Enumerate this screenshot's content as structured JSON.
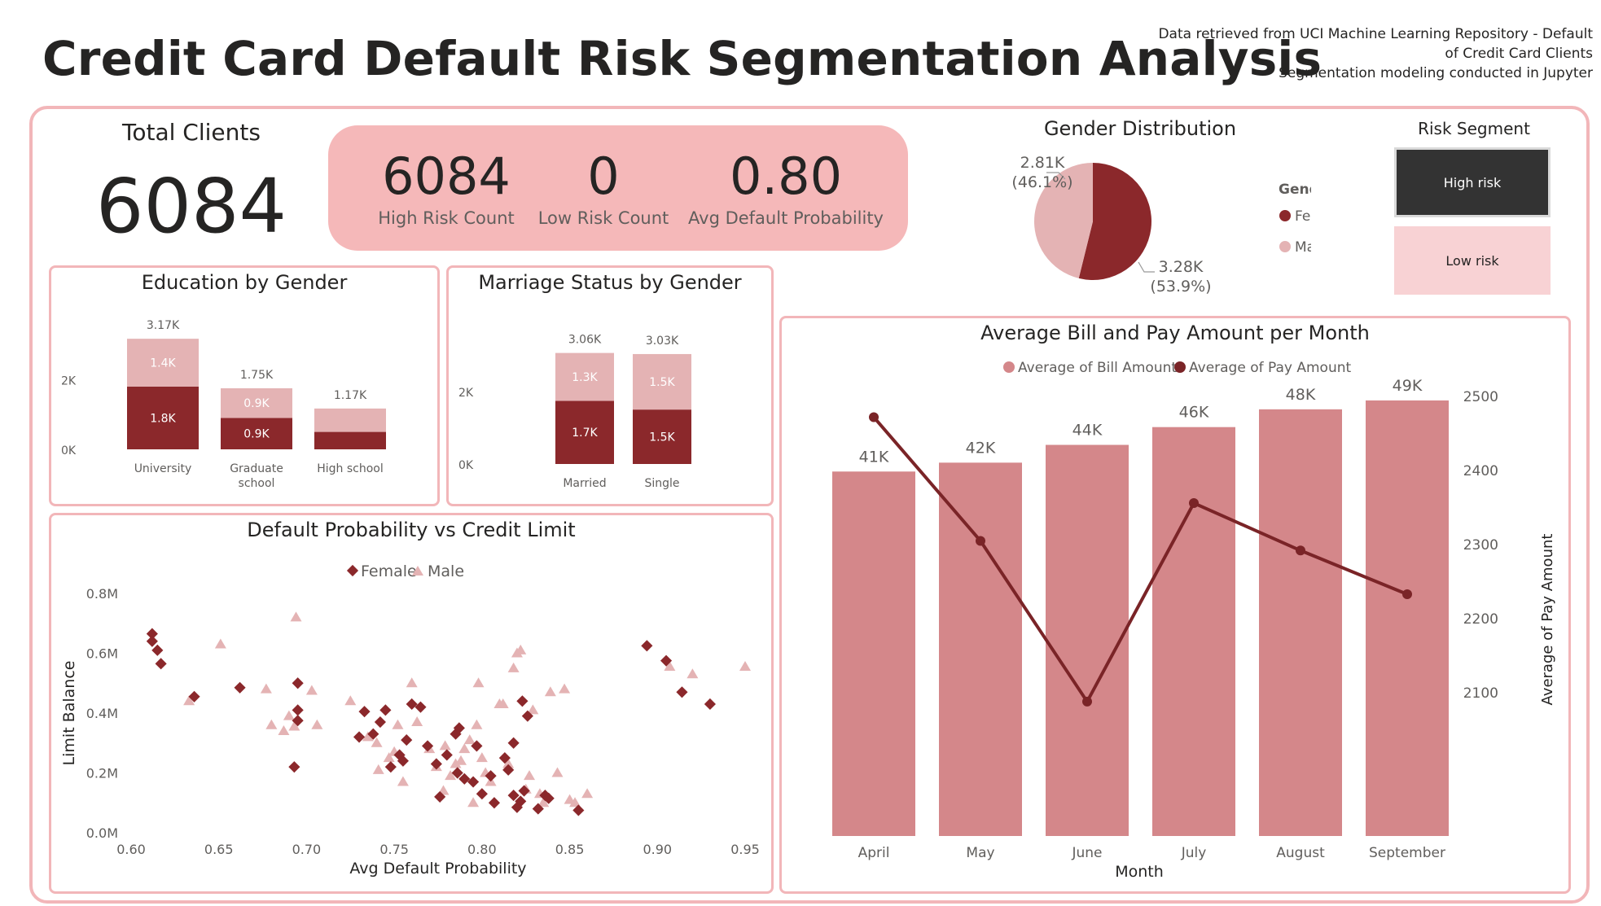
{
  "header": {
    "title": "Credit Card Default Risk Segmentation Analysis",
    "source_lines": [
      "Data retrieved from UCI Machine Learning Repository - Default",
      "of Credit Card Clients",
      "Segmentation modeling conducted in Jupyter"
    ]
  },
  "colors": {
    "female": "#8b282b",
    "male": "#e4b3b4",
    "bill": "#d4878a",
    "pay": "#7a2427",
    "border": "#f2b6b9",
    "pill": "#f5b8b9"
  },
  "kpis": {
    "total_label": "Total Clients",
    "total_value": "6084",
    "high_value": "6084",
    "high_label": "High Risk Count",
    "low_value": "0",
    "low_label": "Low Risk Count",
    "avg_value": "0.80",
    "avg_label": "Avg Default Probability"
  },
  "risk_segment": {
    "title": "Risk Segment",
    "options": [
      "High risk",
      "Low risk"
    ],
    "selected": "High risk"
  },
  "chart_data": [
    {
      "type": "pie",
      "title": "Gender Distribution",
      "legend_title": "Gender",
      "legend_position": "right",
      "slices": [
        {
          "name": "Female",
          "value": 3280,
          "label": "3.28K",
          "pct": "(53.9%)"
        },
        {
          "name": "Male",
          "value": 2810,
          "label": "2.81K",
          "pct": "(46.1%)"
        }
      ]
    },
    {
      "type": "bar",
      "stacked": true,
      "title": "Education by Gender",
      "categories": [
        "University",
        "Graduate school",
        "High school"
      ],
      "category_lines": [
        [
          "University"
        ],
        [
          "Graduate",
          "school"
        ],
        [
          "High school"
        ]
      ],
      "series": [
        {
          "name": "Female",
          "values": [
            1800,
            900,
            500
          ],
          "labels": [
            "1.8K",
            "0.9K",
            ""
          ]
        },
        {
          "name": "Male",
          "values": [
            1370,
            850,
            670
          ],
          "labels": [
            "1.4K",
            "0.9K",
            ""
          ]
        }
      ],
      "totals": [
        "3.17K",
        "1.75K",
        "1.17K"
      ],
      "yticks": [
        "0K",
        "2K"
      ],
      "ylim": [
        0,
        3500
      ]
    },
    {
      "type": "bar",
      "stacked": true,
      "title": "Marriage Status by Gender",
      "categories": [
        "Married",
        "Single"
      ],
      "series": [
        {
          "name": "Female",
          "values": [
            1740,
            1500
          ],
          "labels": [
            "1.7K",
            "1.5K"
          ]
        },
        {
          "name": "Male",
          "values": [
            1320,
            1530
          ],
          "labels": [
            "1.3K",
            "1.5K"
          ]
        }
      ],
      "totals": [
        "3.06K",
        "3.03K"
      ],
      "yticks": [
        "0K",
        "2K"
      ],
      "ylim": [
        0,
        3500
      ]
    },
    {
      "type": "scatter",
      "title": "Default Probability vs Credit Limit",
      "xlabel": "Avg Default Probability",
      "ylabel": "Limit Balance",
      "xlim": [
        0.6,
        0.95
      ],
      "ylim": [
        0,
        800000
      ],
      "xticks": [
        "0.60",
        "0.65",
        "0.70",
        "0.75",
        "0.80",
        "0.85",
        "0.90",
        "0.95"
      ],
      "yticks": [
        "0.0M",
        "0.2M",
        "0.4M",
        "0.6M",
        "0.8M"
      ],
      "legend_position": "top",
      "series": [
        {
          "name": "Female",
          "points": [
            [
              0.612,
              0.665
            ],
            [
              0.612,
              0.64
            ],
            [
              0.615,
              0.61
            ],
            [
              0.617,
              0.565
            ],
            [
              0.636,
              0.455
            ],
            [
              0.662,
              0.485
            ],
            [
              0.695,
              0.5
            ],
            [
              0.695,
              0.41
            ],
            [
              0.695,
              0.375
            ],
            [
              0.693,
              0.22
            ],
            [
              0.733,
              0.405
            ],
            [
              0.73,
              0.32
            ],
            [
              0.738,
              0.33
            ],
            [
              0.742,
              0.37
            ],
            [
              0.745,
              0.41
            ],
            [
              0.748,
              0.22
            ],
            [
              0.753,
              0.26
            ],
            [
              0.755,
              0.24
            ],
            [
              0.757,
              0.31
            ],
            [
              0.76,
              0.43
            ],
            [
              0.765,
              0.42
            ],
            [
              0.769,
              0.29
            ],
            [
              0.774,
              0.23
            ],
            [
              0.776,
              0.12
            ],
            [
              0.78,
              0.26
            ],
            [
              0.785,
              0.33
            ],
            [
              0.787,
              0.35
            ],
            [
              0.786,
              0.2
            ],
            [
              0.79,
              0.18
            ],
            [
              0.795,
              0.17
            ],
            [
              0.797,
              0.29
            ],
            [
              0.8,
              0.13
            ],
            [
              0.805,
              0.19
            ],
            [
              0.807,
              0.1
            ],
            [
              0.813,
              0.25
            ],
            [
              0.815,
              0.21
            ],
            [
              0.818,
              0.125
            ],
            [
              0.82,
              0.085
            ],
            [
              0.822,
              0.105
            ],
            [
              0.824,
              0.14
            ],
            [
              0.818,
              0.3
            ],
            [
              0.823,
              0.44
            ],
            [
              0.826,
              0.39
            ],
            [
              0.832,
              0.08
            ],
            [
              0.836,
              0.125
            ],
            [
              0.838,
              0.115
            ],
            [
              0.855,
              0.075
            ],
            [
              0.894,
              0.625
            ],
            [
              0.905,
              0.575
            ],
            [
              0.914,
              0.47
            ],
            [
              0.93,
              0.43
            ]
          ]
        },
        {
          "name": "Male",
          "points": [
            [
              0.633,
              0.44
            ],
            [
              0.651,
              0.63
            ],
            [
              0.677,
              0.48
            ],
            [
              0.68,
              0.36
            ],
            [
              0.687,
              0.34
            ],
            [
              0.69,
              0.39
            ],
            [
              0.693,
              0.355
            ],
            [
              0.694,
              0.72
            ],
            [
              0.703,
              0.475
            ],
            [
              0.706,
              0.36
            ],
            [
              0.725,
              0.44
            ],
            [
              0.735,
              0.32
            ],
            [
              0.74,
              0.3
            ],
            [
              0.741,
              0.21
            ],
            [
              0.747,
              0.25
            ],
            [
              0.75,
              0.27
            ],
            [
              0.752,
              0.36
            ],
            [
              0.755,
              0.17
            ],
            [
              0.76,
              0.5
            ],
            [
              0.763,
              0.37
            ],
            [
              0.77,
              0.28
            ],
            [
              0.774,
              0.22
            ],
            [
              0.778,
              0.14
            ],
            [
              0.779,
              0.29
            ],
            [
              0.782,
              0.19
            ],
            [
              0.785,
              0.23
            ],
            [
              0.788,
              0.24
            ],
            [
              0.79,
              0.28
            ],
            [
              0.793,
              0.31
            ],
            [
              0.795,
              0.1
            ],
            [
              0.797,
              0.36
            ],
            [
              0.798,
              0.5
            ],
            [
              0.8,
              0.25
            ],
            [
              0.802,
              0.2
            ],
            [
              0.805,
              0.17
            ],
            [
              0.81,
              0.43
            ],
            [
              0.812,
              0.43
            ],
            [
              0.815,
              0.23
            ],
            [
              0.818,
              0.55
            ],
            [
              0.82,
              0.6
            ],
            [
              0.822,
              0.61
            ],
            [
              0.825,
              0.145
            ],
            [
              0.827,
              0.19
            ],
            [
              0.829,
              0.41
            ],
            [
              0.833,
              0.13
            ],
            [
              0.835,
              0.1
            ],
            [
              0.839,
              0.47
            ],
            [
              0.843,
              0.2
            ],
            [
              0.847,
              0.48
            ],
            [
              0.85,
              0.11
            ],
            [
              0.853,
              0.1
            ],
            [
              0.86,
              0.13
            ],
            [
              0.907,
              0.555
            ],
            [
              0.92,
              0.53
            ],
            [
              0.95,
              0.555
            ]
          ]
        }
      ]
    },
    {
      "type": "bar",
      "combo_line": true,
      "title": "Average Bill and Pay Amount per Month",
      "xlabel": "Month",
      "y2label": "Average of Pay Amount",
      "legend_position": "top",
      "categories": [
        "April",
        "May",
        "June",
        "July",
        "August",
        "September"
      ],
      "series": [
        {
          "name": "Average of Bill Amount",
          "type": "bar",
          "values": [
            41000,
            42000,
            44000,
            46000,
            48000,
            49000
          ],
          "labels": [
            "41K",
            "42K",
            "44K",
            "46K",
            "48K",
            "49K"
          ]
        },
        {
          "name": "Average of Pay Amount",
          "type": "line",
          "axis": "right",
          "values": [
            2472,
            2305,
            2088,
            2356,
            2292,
            2233
          ]
        }
      ],
      "ylim": [
        0,
        50000
      ],
      "y2lim": [
        2050,
        2500
      ],
      "y2ticks": [
        "2100",
        "2200",
        "2300",
        "2400",
        "2500"
      ]
    }
  ]
}
